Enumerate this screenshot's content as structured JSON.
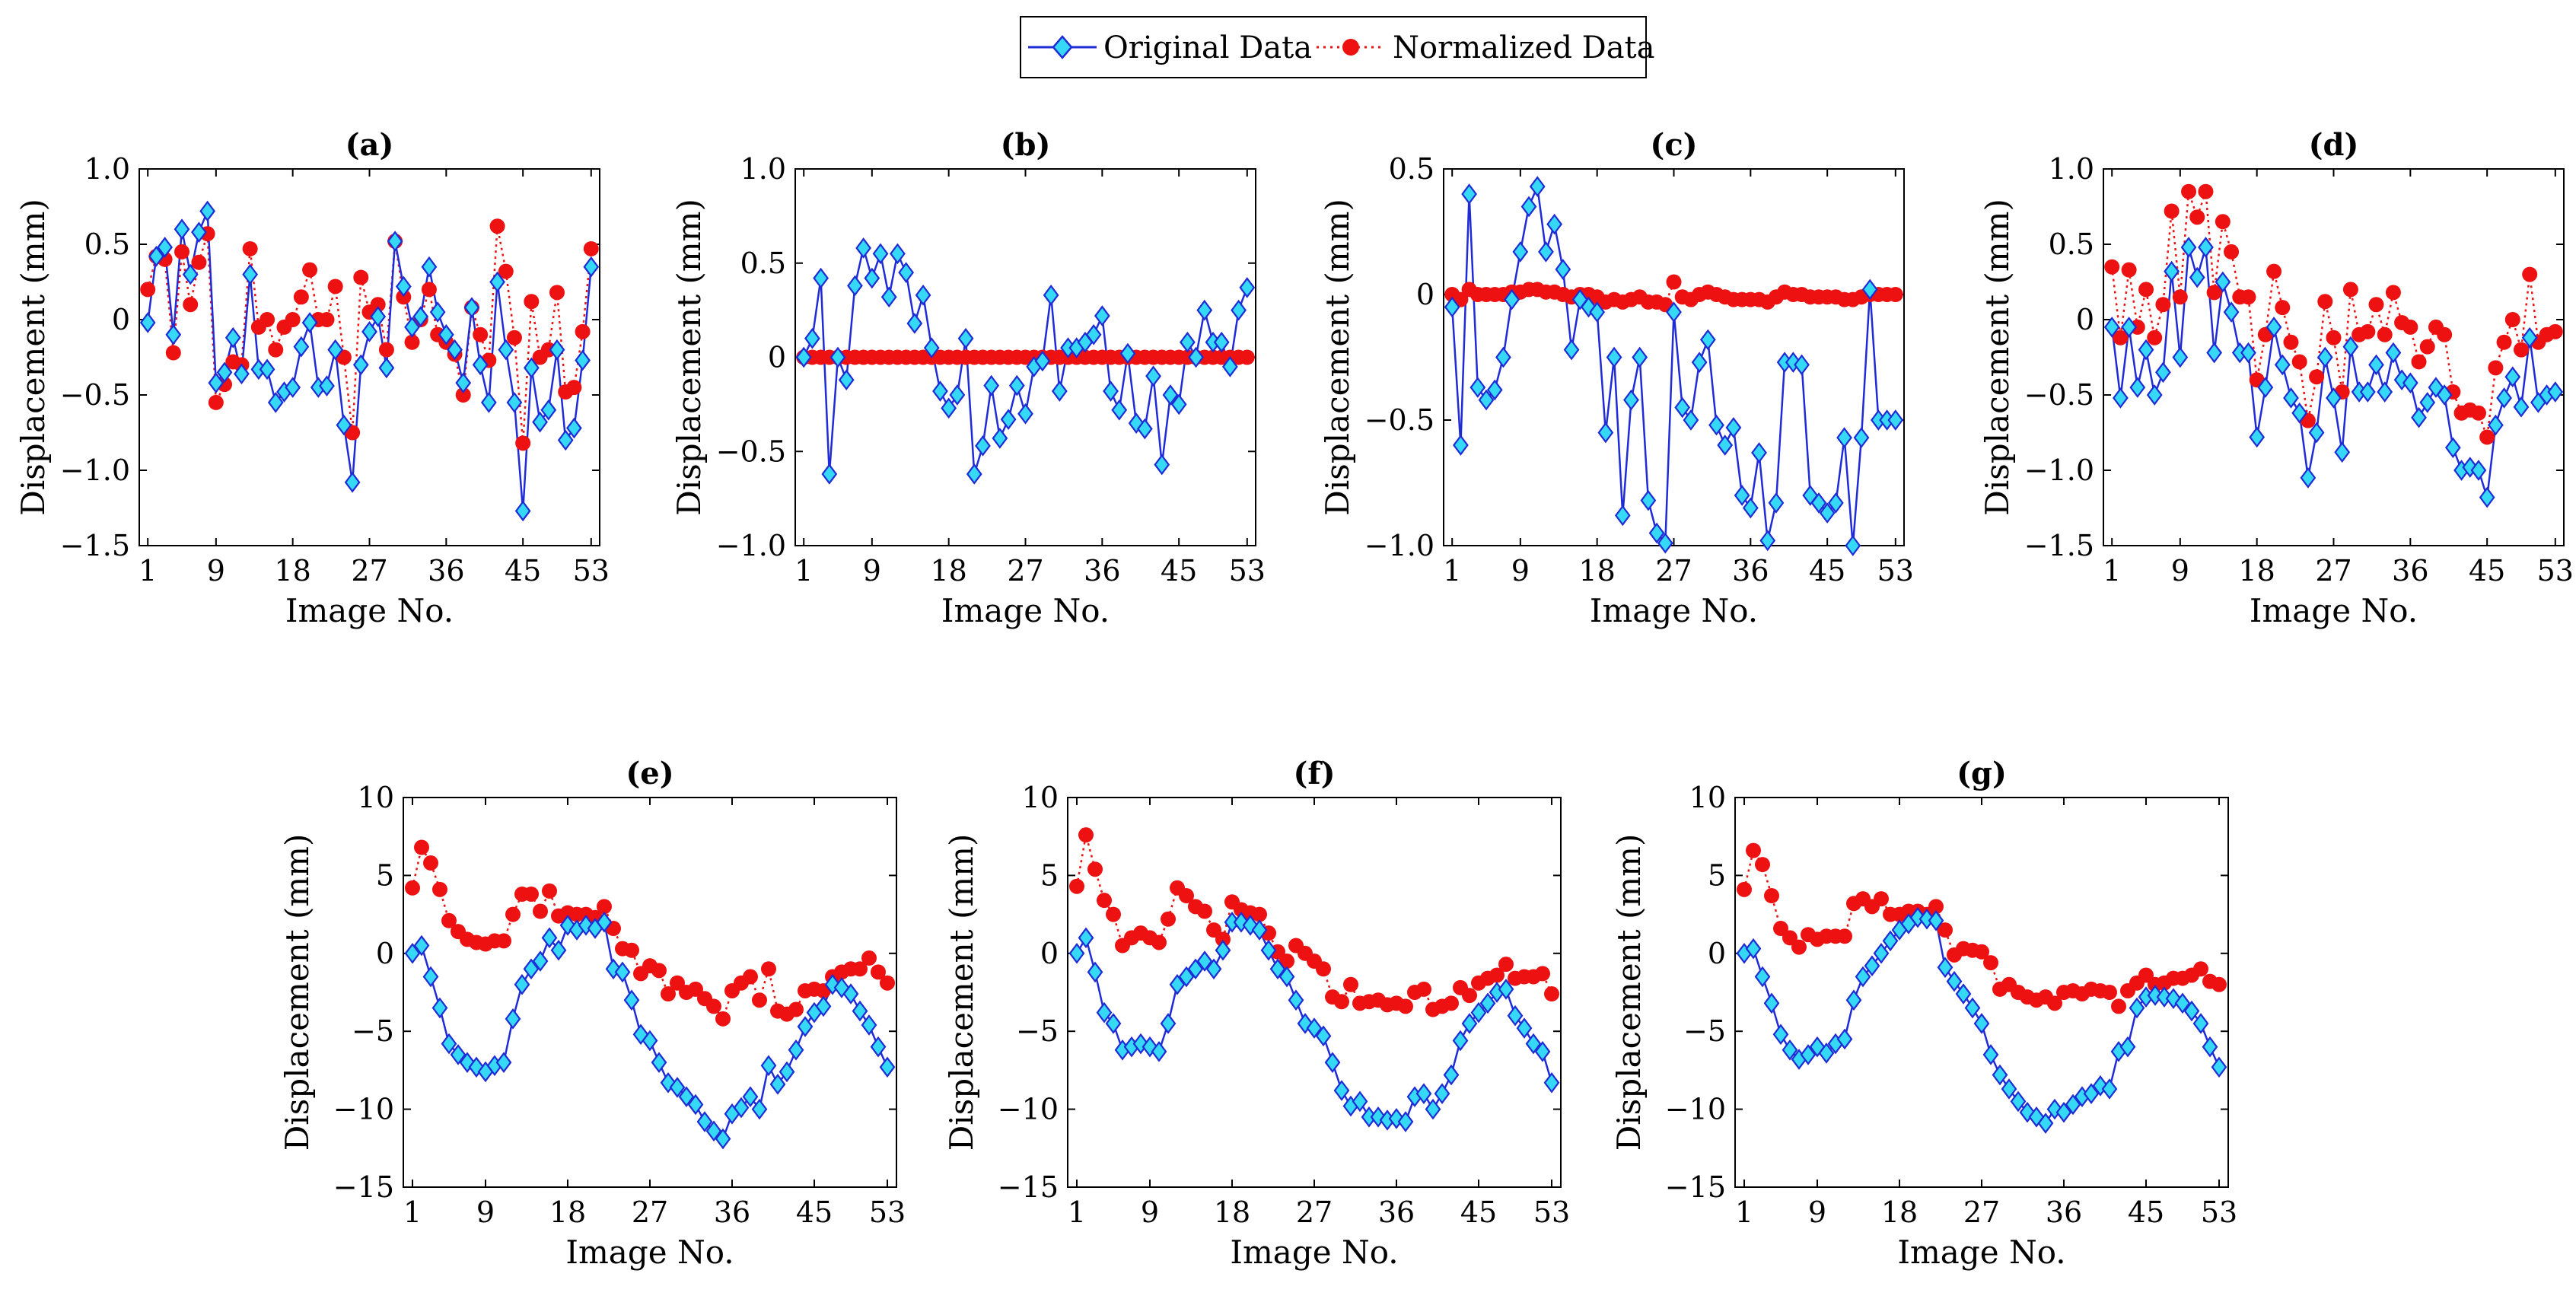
{
  "legend": {
    "original_label": "Original Data",
    "normalized_label": "Normalized Data"
  },
  "colors": {
    "original_line": "#1f2bd6",
    "original_marker": "#35d8f5",
    "normalized": "#ee1111",
    "axis": "#000000"
  },
  "chart_data": [
    {
      "type": "line",
      "panel": "a",
      "title": "(a)",
      "xlabel": "Image No.",
      "ylabel": "Displacement (mm)",
      "xlim": [
        0,
        54
      ],
      "ylim": [
        -1.5,
        1.0
      ],
      "xticks": [
        1,
        9,
        18,
        27,
        36,
        45,
        53
      ],
      "yticks": [
        -1.5,
        -1.0,
        -0.5,
        0,
        0.5,
        1.0
      ],
      "ytick_labels": [
        "−1.5",
        "−1.0",
        "−0.5",
        "0",
        "0.5",
        "1.0"
      ],
      "series": [
        {
          "name": "Original Data",
          "values": [
            -0.02,
            0.42,
            0.48,
            -0.1,
            0.6,
            0.3,
            0.58,
            0.72,
            -0.42,
            -0.35,
            -0.12,
            -0.36,
            0.3,
            -0.33,
            -0.33,
            -0.55,
            -0.48,
            -0.45,
            -0.18,
            -0.02,
            -0.45,
            -0.44,
            -0.2,
            -0.7,
            -1.08,
            -0.3,
            -0.08,
            0.02,
            -0.32,
            0.52,
            0.22,
            -0.05,
            0.02,
            0.35,
            0.05,
            -0.1,
            -0.2,
            -0.42,
            0.08,
            -0.3,
            -0.55,
            0.25,
            -0.2,
            -0.55,
            -1.27,
            -0.32,
            -0.68,
            -0.6,
            -0.2,
            -0.8,
            -0.72,
            -0.27,
            0.35
          ]
        },
        {
          "name": "Normalized Data",
          "values": [
            0.2,
            0.42,
            0.4,
            -0.22,
            0.45,
            0.1,
            0.38,
            0.57,
            -0.55,
            -0.43,
            -0.28,
            -0.3,
            0.47,
            -0.05,
            0.0,
            -0.2,
            -0.05,
            0.0,
            0.15,
            0.33,
            0.0,
            0.0,
            0.22,
            -0.25,
            -0.75,
            0.28,
            0.05,
            0.1,
            -0.2,
            0.52,
            0.15,
            -0.15,
            0.0,
            0.2,
            -0.1,
            -0.15,
            -0.23,
            -0.5,
            0.08,
            -0.1,
            -0.27,
            0.62,
            0.32,
            -0.12,
            -0.82,
            0.12,
            -0.25,
            -0.2,
            0.18,
            -0.48,
            -0.45,
            -0.08,
            0.47
          ]
        }
      ]
    },
    {
      "type": "line",
      "panel": "b",
      "title": "(b)",
      "xlabel": "Image No.",
      "ylabel": "Displacement (mm)",
      "xlim": [
        0,
        54
      ],
      "ylim": [
        -1.0,
        1.0
      ],
      "xticks": [
        1,
        9,
        18,
        27,
        36,
        45,
        53
      ],
      "yticks": [
        -1.0,
        -0.5,
        0,
        0.5,
        1.0
      ],
      "ytick_labels": [
        "−1.0",
        "−0.5",
        "0",
        "0.5",
        "1.0"
      ],
      "series": [
        {
          "name": "Original Data",
          "values": [
            0.0,
            0.1,
            0.42,
            -0.62,
            0.0,
            -0.12,
            0.38,
            0.58,
            0.42,
            0.55,
            0.32,
            0.55,
            0.45,
            0.18,
            0.33,
            0.05,
            -0.18,
            -0.27,
            -0.2,
            0.1,
            -0.62,
            -0.47,
            -0.15,
            -0.43,
            -0.33,
            -0.15,
            -0.3,
            -0.05,
            -0.02,
            0.33,
            -0.18,
            0.05,
            0.05,
            0.08,
            0.12,
            0.22,
            -0.18,
            -0.28,
            0.02,
            -0.35,
            -0.38,
            -0.1,
            -0.57,
            -0.2,
            -0.25,
            0.08,
            0.0,
            0.25,
            0.08,
            0.08,
            -0.05,
            0.25,
            0.37
          ]
        },
        {
          "name": "Normalized Data",
          "values": [
            0.0,
            0.0,
            0.0,
            0.0,
            0.0,
            0.0,
            0.0,
            0.0,
            0.0,
            0.0,
            0.0,
            0.0,
            0.0,
            0.0,
            0.0,
            0.0,
            0.0,
            0.0,
            0.0,
            0.0,
            0.0,
            0.0,
            0.0,
            0.0,
            0.0,
            0.0,
            0.0,
            0.0,
            0.0,
            0.0,
            0.0,
            0.0,
            0.0,
            0.0,
            0.0,
            0.0,
            0.0,
            0.0,
            0.0,
            0.0,
            0.0,
            0.0,
            0.0,
            0.0,
            0.0,
            0.0,
            0.0,
            0.0,
            0.0,
            0.0,
            0.0,
            0.0,
            0.0
          ]
        }
      ]
    },
    {
      "type": "line",
      "panel": "c",
      "title": "(c)",
      "xlabel": "Image No.",
      "ylabel": "Displacement (mm)",
      "xlim": [
        0,
        54
      ],
      "ylim": [
        -1.0,
        0.5
      ],
      "xticks": [
        1,
        9,
        18,
        27,
        36,
        45,
        53
      ],
      "yticks": [
        -1.0,
        -0.5,
        0,
        0.5
      ],
      "ytick_labels": [
        "−1.0",
        "−0.5",
        "0",
        "0.5"
      ],
      "series": [
        {
          "name": "Original Data",
          "values": [
            -0.05,
            -0.6,
            0.4,
            -0.37,
            -0.42,
            -0.38,
            -0.25,
            -0.02,
            0.17,
            0.35,
            0.43,
            0.17,
            0.28,
            0.1,
            -0.22,
            -0.02,
            -0.05,
            -0.07,
            -0.55,
            -0.25,
            -0.88,
            -0.42,
            -0.25,
            -0.82,
            -0.95,
            -0.99,
            -0.07,
            -0.45,
            -0.5,
            -0.27,
            -0.18,
            -0.52,
            -0.6,
            -0.53,
            -0.8,
            -0.85,
            -0.63,
            -0.98,
            -0.83,
            -0.27,
            -0.27,
            -0.28,
            -0.8,
            -0.83,
            -0.87,
            -0.83,
            -0.57,
            -1.0,
            -0.57,
            0.02,
            -0.5,
            -0.5,
            -0.5
          ]
        },
        {
          "name": "Normalized Data",
          "values": [
            0.0,
            -0.02,
            0.02,
            0.0,
            0.0,
            0.0,
            0.0,
            0.01,
            0.01,
            0.02,
            0.02,
            0.01,
            0.01,
            0.0,
            -0.01,
            0.0,
            0.0,
            -0.01,
            -0.03,
            -0.02,
            -0.03,
            -0.02,
            -0.01,
            -0.03,
            -0.03,
            -0.04,
            0.05,
            -0.01,
            -0.02,
            0.0,
            0.01,
            0.0,
            -0.01,
            -0.02,
            -0.02,
            -0.02,
            -0.02,
            -0.03,
            -0.01,
            0.01,
            0.0,
            0.0,
            -0.01,
            -0.01,
            -0.01,
            -0.01,
            -0.02,
            -0.02,
            -0.01,
            0.0,
            0.0,
            0.0,
            0.0
          ]
        }
      ]
    },
    {
      "type": "line",
      "panel": "d",
      "title": "(d)",
      "xlabel": "Image No.",
      "ylabel": "Displacement (mm)",
      "xlim": [
        0,
        54
      ],
      "ylim": [
        -1.5,
        1.0
      ],
      "xticks": [
        1,
        9,
        18,
        27,
        36,
        45,
        53
      ],
      "yticks": [
        -1.5,
        -1.0,
        -0.5,
        0,
        0.5,
        1.0
      ],
      "ytick_labels": [
        "−1.5",
        "−1.0",
        "−0.5",
        "0",
        "0.5",
        "1.0"
      ],
      "series": [
        {
          "name": "Original Data",
          "values": [
            -0.05,
            -0.52,
            -0.05,
            -0.45,
            -0.2,
            -0.5,
            -0.35,
            0.32,
            -0.25,
            0.48,
            0.28,
            0.48,
            -0.22,
            0.25,
            0.05,
            -0.22,
            -0.22,
            -0.78,
            -0.45,
            -0.05,
            -0.3,
            -0.52,
            -0.62,
            -1.05,
            -0.75,
            -0.25,
            -0.52,
            -0.88,
            -0.18,
            -0.48,
            -0.48,
            -0.3,
            -0.48,
            -0.22,
            -0.4,
            -0.42,
            -0.65,
            -0.55,
            -0.45,
            -0.5,
            -0.85,
            -1.0,
            -0.98,
            -1.0,
            -1.18,
            -0.7,
            -0.52,
            -0.38,
            -0.58,
            -0.12,
            -0.55,
            -0.5,
            -0.48
          ]
        },
        {
          "name": "Normalized Data",
          "values": [
            0.35,
            -0.12,
            0.33,
            -0.05,
            0.2,
            -0.12,
            0.1,
            0.72,
            0.15,
            0.85,
            0.68,
            0.85,
            0.18,
            0.65,
            0.45,
            0.15,
            0.15,
            -0.4,
            -0.1,
            0.32,
            0.08,
            -0.15,
            -0.28,
            -0.67,
            -0.38,
            0.12,
            -0.12,
            -0.48,
            0.2,
            -0.1,
            -0.08,
            0.1,
            -0.1,
            0.18,
            -0.02,
            -0.05,
            -0.28,
            -0.18,
            -0.05,
            -0.1,
            -0.48,
            -0.62,
            -0.6,
            -0.62,
            -0.78,
            -0.32,
            -0.15,
            0.0,
            -0.2,
            0.3,
            -0.15,
            -0.1,
            -0.08
          ]
        }
      ]
    },
    {
      "type": "line",
      "panel": "e",
      "title": "(e)",
      "xlabel": "Image No.",
      "ylabel": "Displacement (mm)",
      "xlim": [
        0,
        54
      ],
      "ylim": [
        -15,
        10
      ],
      "xticks": [
        1,
        9,
        18,
        27,
        36,
        45,
        53
      ],
      "yticks": [
        -15,
        -10,
        -5,
        0,
        5,
        10
      ],
      "ytick_labels": [
        "−15",
        "−10",
        "−5",
        "0",
        "5",
        "10"
      ],
      "series": [
        {
          "name": "Original Data",
          "values": [
            0.0,
            0.5,
            -1.5,
            -3.5,
            -5.8,
            -6.5,
            -7.0,
            -7.3,
            -7.6,
            -7.2,
            -7.0,
            -4.2,
            -2.0,
            -1.0,
            -0.5,
            1.0,
            0.2,
            1.8,
            1.5,
            1.8,
            1.6,
            2.0,
            -1.0,
            -1.2,
            -3.0,
            -5.2,
            -5.6,
            -7.0,
            -8.3,
            -8.6,
            -9.2,
            -9.7,
            -10.8,
            -11.4,
            -11.9,
            -10.3,
            -9.9,
            -9.2,
            -10.0,
            -7.2,
            -8.4,
            -7.6,
            -6.2,
            -4.7,
            -3.8,
            -3.4,
            -2.0,
            -2.2,
            -2.6,
            -3.7,
            -4.6,
            -6.0,
            -7.3
          ]
        },
        {
          "name": "Normalized Data",
          "values": [
            4.2,
            6.8,
            5.8,
            4.1,
            2.1,
            1.4,
            0.9,
            0.7,
            0.6,
            0.8,
            0.8,
            2.5,
            3.8,
            3.8,
            2.7,
            4.0,
            2.4,
            2.6,
            2.5,
            2.5,
            2.3,
            3.0,
            1.6,
            0.3,
            0.2,
            -1.3,
            -0.8,
            -1.1,
            -2.6,
            -1.9,
            -2.5,
            -2.3,
            -2.9,
            -3.4,
            -4.2,
            -2.4,
            -1.9,
            -1.5,
            -3.0,
            -1.0,
            -3.7,
            -3.9,
            -3.6,
            -2.4,
            -2.3,
            -2.4,
            -1.5,
            -1.2,
            -1.0,
            -1.0,
            -0.3,
            -1.2,
            -1.9
          ]
        }
      ]
    },
    {
      "type": "line",
      "panel": "f",
      "title": "(f)",
      "xlabel": "Image No.",
      "ylabel": "Displacement (mm)",
      "xlim": [
        0,
        54
      ],
      "ylim": [
        -15,
        10
      ],
      "xticks": [
        1,
        9,
        18,
        27,
        36,
        45,
        53
      ],
      "yticks": [
        -15,
        -10,
        -5,
        0,
        5,
        10
      ],
      "ytick_labels": [
        "−15",
        "−10",
        "−5",
        "0",
        "5",
        "10"
      ],
      "series": [
        {
          "name": "Original Data",
          "values": [
            0.0,
            1.0,
            -1.2,
            -3.8,
            -4.5,
            -6.2,
            -6.0,
            -5.8,
            -6.0,
            -6.3,
            -4.5,
            -2.0,
            -1.5,
            -1.0,
            -0.5,
            -1.0,
            0.2,
            2.0,
            2.0,
            1.8,
            1.5,
            0.2,
            -1.0,
            -1.5,
            -3.0,
            -4.5,
            -4.8,
            -5.3,
            -7.0,
            -8.8,
            -9.8,
            -9.5,
            -10.5,
            -10.5,
            -10.7,
            -10.6,
            -10.8,
            -9.2,
            -9.0,
            -10.0,
            -9.0,
            -7.8,
            -5.6,
            -4.5,
            -3.8,
            -3.2,
            -2.5,
            -2.3,
            -4.0,
            -4.8,
            -5.8,
            -6.3,
            -8.3
          ]
        },
        {
          "name": "Normalized Data",
          "values": [
            4.3,
            7.6,
            5.4,
            3.4,
            2.5,
            0.5,
            1.0,
            1.3,
            1.0,
            0.7,
            2.2,
            4.2,
            3.7,
            3.0,
            2.7,
            1.5,
            0.9,
            3.3,
            2.8,
            2.6,
            2.5,
            1.3,
            0.1,
            -0.5,
            0.5,
            0.0,
            -0.5,
            -1.0,
            -2.8,
            -3.1,
            -2.0,
            -3.2,
            -3.1,
            -3.0,
            -3.3,
            -3.2,
            -3.4,
            -2.5,
            -2.3,
            -3.6,
            -3.4,
            -3.2,
            -2.2,
            -2.7,
            -1.9,
            -1.6,
            -1.4,
            -0.7,
            -1.6,
            -1.5,
            -1.5,
            -1.3,
            -2.6
          ]
        }
      ]
    },
    {
      "type": "line",
      "panel": "g",
      "title": "(g)",
      "xlabel": "Image No.",
      "ylabel": "Displacement (mm)",
      "xlim": [
        0,
        54
      ],
      "ylim": [
        -15,
        10
      ],
      "xticks": [
        1,
        9,
        18,
        27,
        36,
        45,
        53
      ],
      "yticks": [
        -15,
        -10,
        -5,
        0,
        5,
        10
      ],
      "ytick_labels": [
        "−15",
        "−10",
        "−5",
        "0",
        "5",
        "10"
      ],
      "series": [
        {
          "name": "Original Data",
          "values": [
            0.0,
            0.3,
            -1.5,
            -3.2,
            -5.2,
            -6.2,
            -6.8,
            -6.5,
            -6.0,
            -6.4,
            -5.8,
            -5.5,
            -3.0,
            -1.5,
            -0.8,
            0.0,
            0.8,
            1.5,
            1.9,
            2.3,
            2.2,
            2.1,
            -0.9,
            -1.8,
            -2.6,
            -3.5,
            -4.5,
            -6.5,
            -7.8,
            -8.7,
            -9.5,
            -10.2,
            -10.5,
            -10.9,
            -10.0,
            -10.2,
            -9.7,
            -9.2,
            -9.0,
            -8.5,
            -8.7,
            -6.3,
            -6.0,
            -3.5,
            -2.8,
            -2.7,
            -2.8,
            -2.9,
            -3.2,
            -3.7,
            -4.5,
            -6.0,
            -7.3
          ]
        },
        {
          "name": "Normalized Data",
          "values": [
            4.1,
            6.6,
            5.7,
            3.7,
            1.6,
            1.0,
            0.4,
            1.2,
            0.9,
            1.1,
            1.1,
            1.1,
            3.2,
            3.5,
            3.0,
            3.5,
            2.5,
            2.5,
            2.7,
            2.7,
            2.5,
            3.0,
            1.5,
            -0.1,
            0.3,
            0.2,
            0.1,
            -0.6,
            -2.3,
            -2.0,
            -2.5,
            -2.8,
            -3.0,
            -2.8,
            -3.2,
            -2.5,
            -2.4,
            -2.6,
            -2.3,
            -2.4,
            -2.5,
            -3.4,
            -2.4,
            -1.9,
            -1.4,
            -2.0,
            -1.9,
            -1.6,
            -1.6,
            -1.4,
            -1.0,
            -1.8,
            -2.0
          ]
        }
      ]
    }
  ]
}
